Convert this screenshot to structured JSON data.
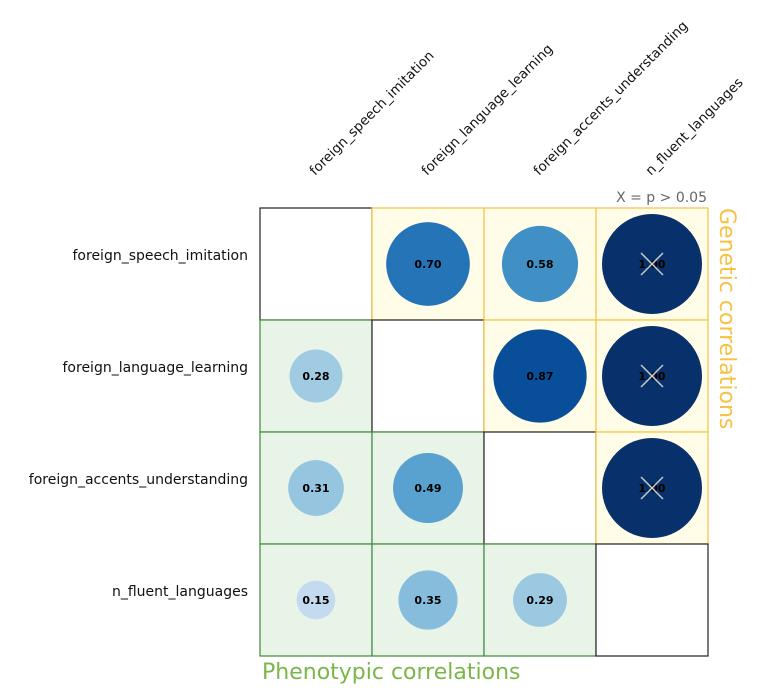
{
  "chart_data": {
    "type": "heatmap",
    "traits": [
      "foreign_speech_imitation",
      "foreign_language_learning",
      "foreign_accents_understanding",
      "n_fluent_languages"
    ],
    "matrix": [
      [
        null,
        0.7,
        0.58,
        1.0
      ],
      [
        0.28,
        null,
        0.87,
        1.0
      ],
      [
        0.31,
        0.49,
        null,
        1.0
      ],
      [
        0.15,
        0.35,
        0.29,
        null
      ]
    ],
    "labels": [
      [
        "",
        "0.70",
        "0.58",
        "1.00"
      ],
      [
        "0.28",
        "",
        "0.87",
        "1.00"
      ],
      [
        "0.31",
        "0.49",
        "",
        "1.00"
      ],
      [
        "0.15",
        "0.35",
        "0.29",
        ""
      ]
    ],
    "not_significant": [
      [
        0,
        3
      ],
      [
        1,
        3
      ],
      [
        2,
        3
      ]
    ],
    "significance_note": "X = p > 0.05",
    "upper_triangle_label": "Genetic correlations",
    "lower_triangle_label": "Phenotypic correlations",
    "value_range": [
      0,
      1
    ],
    "colors": {
      "genetic_cell_fill": "#fffde8",
      "genetic_cell_border": "#f5c242",
      "phenotypic_cell_fill": "#e8f4e8",
      "phenotypic_cell_border": "#3d8a3d",
      "diagonal_border": "#222222",
      "scale_low": "#deebf7",
      "scale_high": "#08306b",
      "genetic_label": "#f5c242",
      "phenotypic_label": "#7ab648"
    }
  }
}
